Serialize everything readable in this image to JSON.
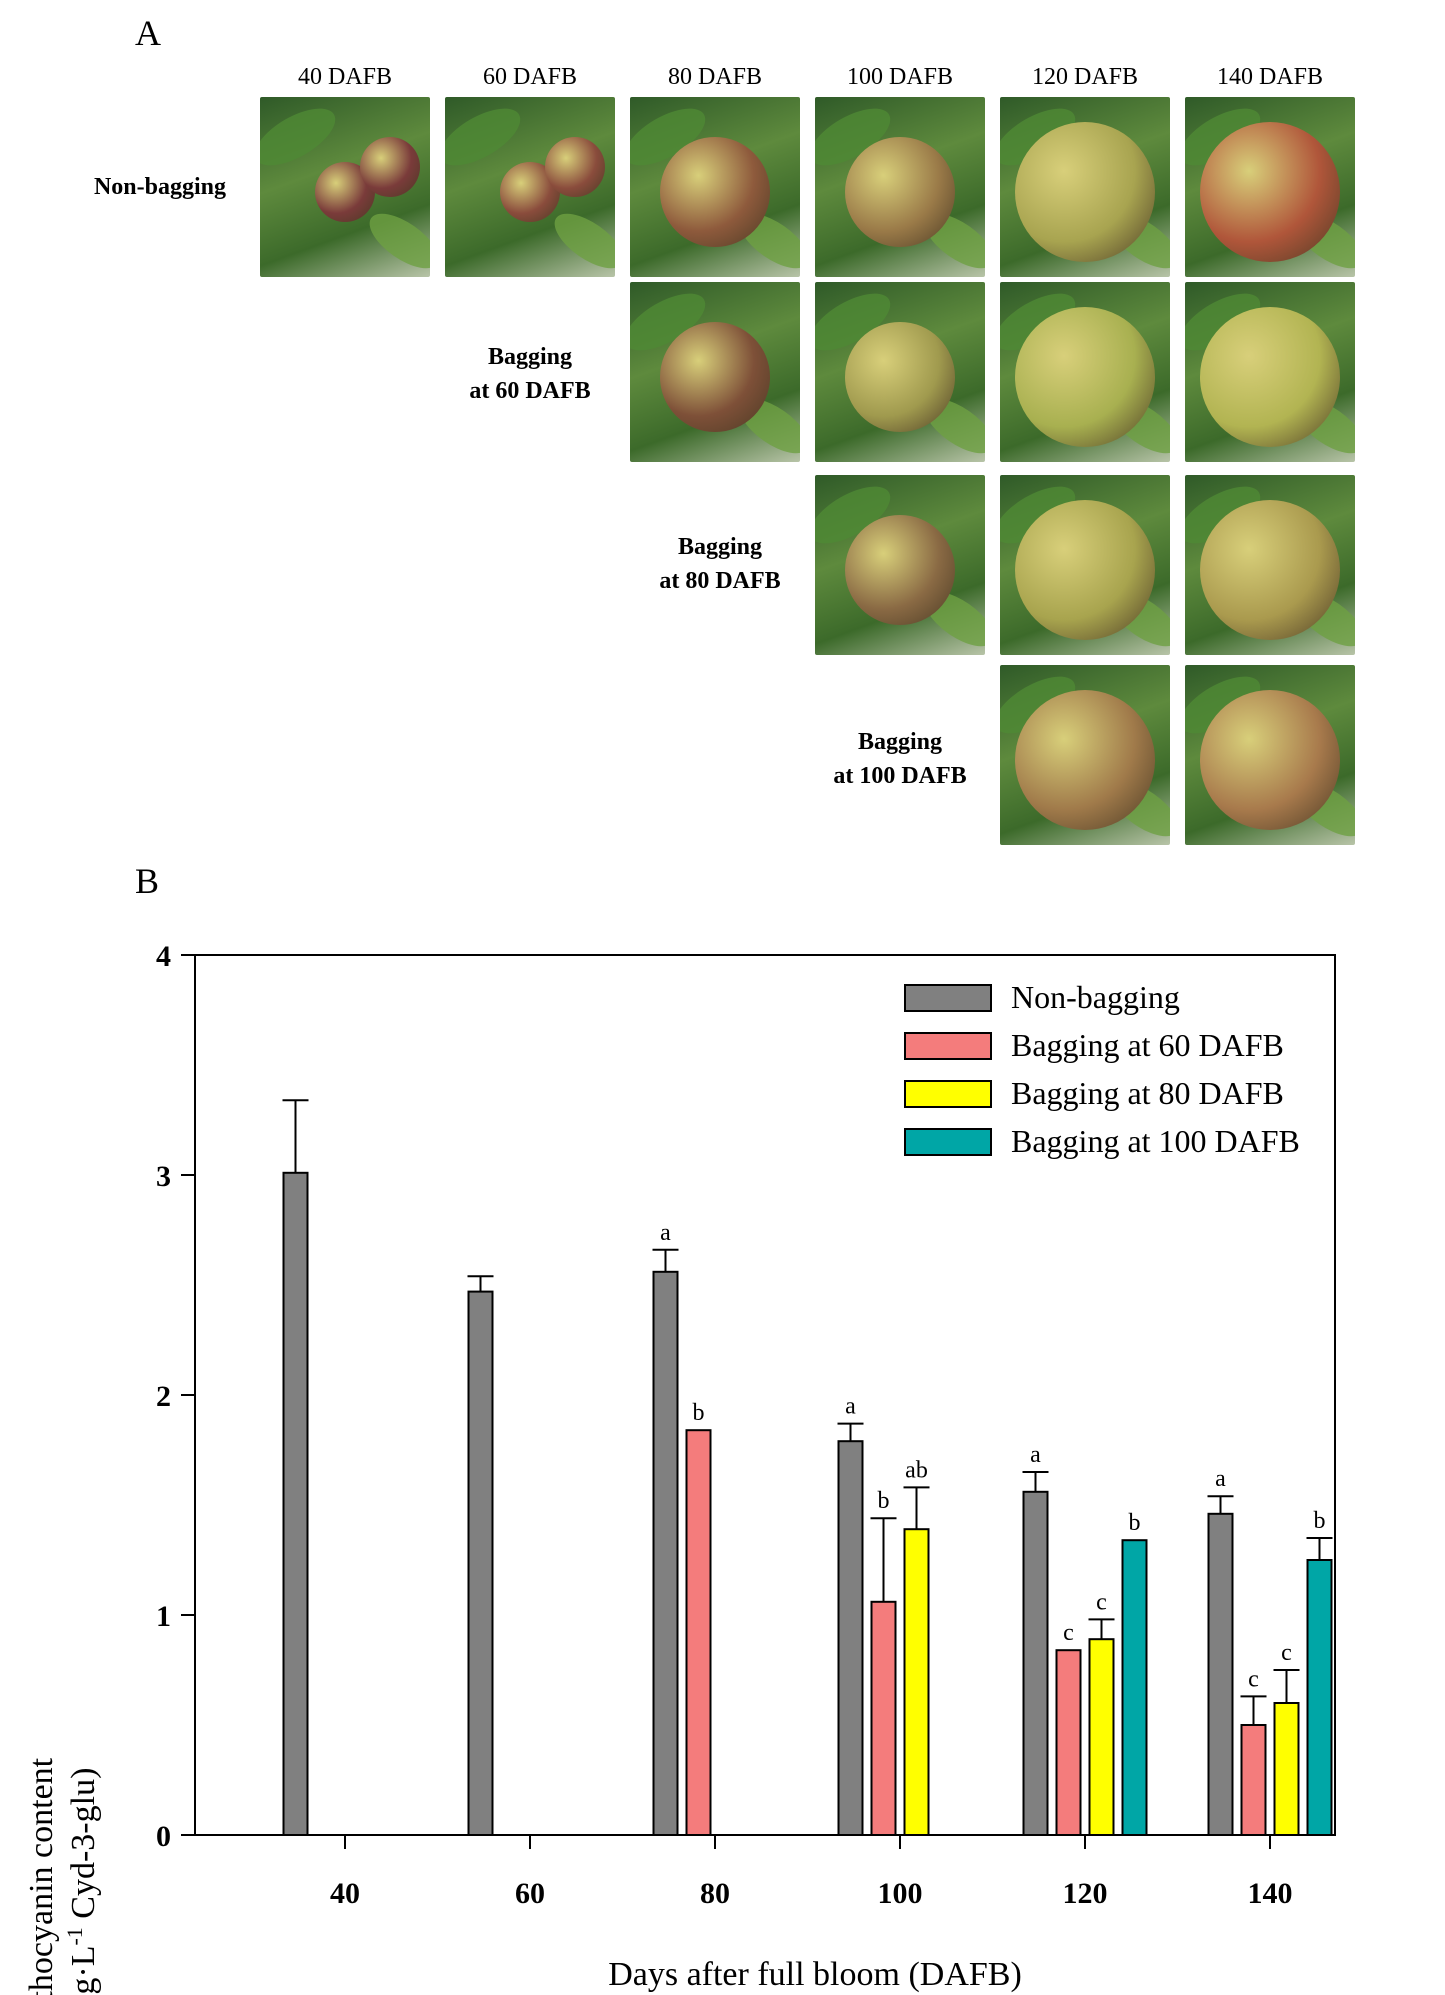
{
  "panelA": {
    "letter": "A",
    "columns": [
      "40 DAFB",
      "60 DAFB",
      "80 DAFB",
      "100 DAFB",
      "120 DAFB",
      "140 DAFB"
    ],
    "rows": [
      {
        "label_line1": "Non-bagging",
        "label_line2": ""
      },
      {
        "label_line1": "Bagging",
        "label_line2": "at 60 DAFB"
      },
      {
        "label_line1": "Bagging",
        "label_line2": "at 80 DAFB"
      },
      {
        "label_line1": "Bagging",
        "label_line2": "at 100 DAFB"
      }
    ]
  },
  "panelB": {
    "letter": "B"
  },
  "chart_data": {
    "type": "bar",
    "xlabel": "Days after full bloom (DAFB)",
    "ylabel_line1": "Anthocyanin content",
    "ylabel_line2_pre": "(mg·L",
    "ylabel_sup": "-1",
    "ylabel_line2_post": " Cyd-3-glu)",
    "ylim": [
      0,
      4
    ],
    "yticks": [
      0,
      1,
      2,
      3,
      4
    ],
    "categories": [
      "40",
      "60",
      "80",
      "100",
      "120",
      "140"
    ],
    "legend_position": "top-right",
    "series": [
      {
        "name": "Non-bagging",
        "color": "#808080",
        "values": [
          3.01,
          2.47,
          2.56,
          1.79,
          1.56,
          1.46
        ],
        "errors": [
          0.33,
          0.07,
          0.1,
          0.08,
          0.09,
          0.08
        ],
        "letters": [
          "",
          "",
          "a",
          "a",
          "a",
          "a"
        ]
      },
      {
        "name": "Bagging at 60 DAFB",
        "color": "#f47c7c",
        "values": [
          null,
          null,
          1.84,
          1.06,
          0.84,
          0.5
        ],
        "errors": [
          null,
          null,
          0.0,
          0.38,
          0.0,
          0.13
        ],
        "letters": [
          "",
          "",
          "b",
          "b",
          "c",
          "c"
        ]
      },
      {
        "name": "Bagging at 80 DAFB",
        "color": "#ffff00",
        "values": [
          null,
          null,
          null,
          1.39,
          0.89,
          0.6
        ],
        "errors": [
          null,
          null,
          null,
          0.19,
          0.09,
          0.15
        ],
        "letters": [
          "",
          "",
          "",
          "ab",
          "c",
          "c"
        ]
      },
      {
        "name": "Bagging at 100 DAFB",
        "color": "#00a6a6",
        "values": [
          null,
          null,
          null,
          null,
          1.34,
          1.25
        ],
        "errors": [
          null,
          null,
          null,
          null,
          0.0,
          0.1
        ],
        "letters": [
          "",
          "",
          "",
          "",
          "b",
          "b"
        ]
      }
    ]
  }
}
